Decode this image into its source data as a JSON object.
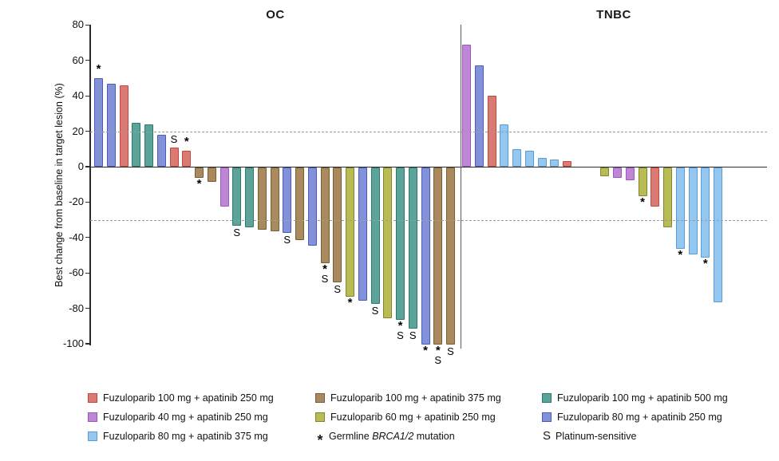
{
  "chart_data": {
    "type": "bar",
    "title": "",
    "ylabel": "Best change from baseline in target lesion (%)",
    "ylim": [
      -100,
      80
    ],
    "yticks": [
      80,
      60,
      40,
      20,
      0,
      -20,
      -40,
      -60,
      -80,
      -100
    ],
    "reference_lines": [
      20,
      -30
    ],
    "grid": "dashed-horizontal-at-20-and-minus-30",
    "legend_position": "bottom",
    "marker_meanings": {
      "*": "Germline BRCA1/2 mutation",
      "S": "Platinum-sensitive"
    },
    "arms": {
      "fz100_ap250": {
        "label": "Fuzuloparib 100 mg + apatinib 250 mg",
        "fill": "#DA7A72",
        "border": "#C2473D"
      },
      "fz40_ap250": {
        "label": "Fuzuloparib 40 mg + apatinib 250 mg",
        "fill": "#BE87D6",
        "border": "#9C57C2"
      },
      "fz80_ap375": {
        "label": "Fuzuloparib 80 mg + apatinib 375 mg",
        "fill": "#94C7EF",
        "border": "#5B9CD5"
      },
      "fz100_ap375": {
        "label": "Fuzuloparib 100 mg + apatinib 375 mg",
        "fill": "#A9895E",
        "border": "#7B5B34"
      },
      "fz60_ap250": {
        "label": "Fuzuloparib 60 mg + apatinib 250 mg",
        "fill": "#B9BC55",
        "border": "#82862A"
      },
      "fz100_ap500": {
        "label": "Fuzuloparib 100 mg + apatinib 500 mg",
        "fill": "#5CA49A",
        "border": "#2A7A6E"
      },
      "fz80_ap250": {
        "label": "Fuzuloparib 80 mg + apatinib 250 mg",
        "fill": "#8391D8",
        "border": "#4A5BC0"
      }
    },
    "groups": [
      {
        "label": "OC",
        "bars": [
          {
            "value": 50,
            "arm": "fz80_ap250",
            "mark": "*"
          },
          {
            "value": 47,
            "arm": "fz80_ap250",
            "mark": ""
          },
          {
            "value": 46,
            "arm": "fz100_ap250",
            "mark": ""
          },
          {
            "value": 25,
            "arm": "fz100_ap500",
            "mark": ""
          },
          {
            "value": 24,
            "arm": "fz100_ap500",
            "mark": ""
          },
          {
            "value": 18,
            "arm": "fz80_ap250",
            "mark": ""
          },
          {
            "value": 11,
            "arm": "fz100_ap250",
            "mark": "S"
          },
          {
            "value": 9,
            "arm": "fz100_ap250",
            "mark": "*"
          },
          {
            "value": -6,
            "arm": "fz100_ap375",
            "mark": "*"
          },
          {
            "value": -8,
            "arm": "fz100_ap375",
            "mark": ""
          },
          {
            "value": -22,
            "arm": "fz40_ap250",
            "mark": ""
          },
          {
            "value": -33,
            "arm": "fz100_ap500",
            "mark": "S"
          },
          {
            "value": -34,
            "arm": "fz100_ap500",
            "mark": ""
          },
          {
            "value": -35,
            "arm": "fz100_ap375",
            "mark": ""
          },
          {
            "value": -36,
            "arm": "fz100_ap375",
            "mark": ""
          },
          {
            "value": -37,
            "arm": "fz80_ap250",
            "mark": "S"
          },
          {
            "value": -41,
            "arm": "fz100_ap375",
            "mark": ""
          },
          {
            "value": -44,
            "arm": "fz80_ap250",
            "mark": ""
          },
          {
            "value": -54,
            "arm": "fz100_ap375",
            "mark": "*S"
          },
          {
            "value": -65,
            "arm": "fz100_ap375",
            "mark": "S"
          },
          {
            "value": -73,
            "arm": "fz60_ap250",
            "mark": "*"
          },
          {
            "value": -75,
            "arm": "fz80_ap250",
            "mark": ""
          },
          {
            "value": -77,
            "arm": "fz100_ap500",
            "mark": "S"
          },
          {
            "value": -85,
            "arm": "fz60_ap250",
            "mark": ""
          },
          {
            "value": -86,
            "arm": "fz100_ap500",
            "mark": "*S"
          },
          {
            "value": -91,
            "arm": "fz100_ap500",
            "mark": "S"
          },
          {
            "value": -100,
            "arm": "fz80_ap250",
            "mark": "*"
          },
          {
            "value": -100,
            "arm": "fz100_ap375",
            "mark": "*S"
          },
          {
            "value": -100,
            "arm": "fz100_ap375",
            "mark": "S"
          }
        ]
      },
      {
        "label": "TNBC",
        "bars": [
          {
            "value": 69,
            "arm": "fz40_ap250",
            "mark": ""
          },
          {
            "value": 57,
            "arm": "fz80_ap250",
            "mark": ""
          },
          {
            "value": 40,
            "arm": "fz100_ap250",
            "mark": ""
          },
          {
            "value": 24,
            "arm": "fz80_ap375",
            "mark": ""
          },
          {
            "value": 10,
            "arm": "fz80_ap375",
            "mark": ""
          },
          {
            "value": 9,
            "arm": "fz80_ap375",
            "mark": ""
          },
          {
            "value": 5,
            "arm": "fz80_ap375",
            "mark": ""
          },
          {
            "value": 4,
            "arm": "fz80_ap375",
            "mark": ""
          },
          {
            "value": 3,
            "arm": "fz100_ap250",
            "mark": ""
          },
          {
            "value": -5,
            "arm": "fz60_ap250",
            "mark": "",
            "gap_before": 2
          },
          {
            "value": -6,
            "arm": "fz40_ap250",
            "mark": ""
          },
          {
            "value": -7,
            "arm": "fz40_ap250",
            "mark": ""
          },
          {
            "value": -16,
            "arm": "fz60_ap250",
            "mark": "*"
          },
          {
            "value": -22,
            "arm": "fz100_ap250",
            "mark": ""
          },
          {
            "value": -34,
            "arm": "fz60_ap250",
            "mark": ""
          },
          {
            "value": -46,
            "arm": "fz80_ap375",
            "mark": "*"
          },
          {
            "value": -49,
            "arm": "fz80_ap375",
            "mark": ""
          },
          {
            "value": -51,
            "arm": "fz80_ap375",
            "mark": "*"
          },
          {
            "value": -76,
            "arm": "fz80_ap375",
            "mark": ""
          }
        ]
      }
    ]
  },
  "legend": {
    "columns": [
      {
        "items": [
          {
            "type": "swatch",
            "arm": "fz100_ap250"
          },
          {
            "type": "swatch",
            "arm": "fz40_ap250"
          },
          {
            "type": "swatch",
            "arm": "fz80_ap375"
          }
        ]
      },
      {
        "items": [
          {
            "type": "swatch",
            "arm": "fz100_ap375"
          },
          {
            "type": "swatch",
            "arm": "fz60_ap250"
          },
          {
            "type": "symbol",
            "symbol": "*",
            "label_prefix": "Germline ",
            "label_italic": "BRCA1/2",
            "label_suffix": " mutation"
          }
        ]
      },
      {
        "items": [
          {
            "type": "swatch",
            "arm": "fz100_ap500"
          },
          {
            "type": "swatch",
            "arm": "fz80_ap250"
          },
          {
            "type": "symbol",
            "symbol": "S",
            "label": "Platinum-sensitive"
          }
        ]
      }
    ]
  }
}
